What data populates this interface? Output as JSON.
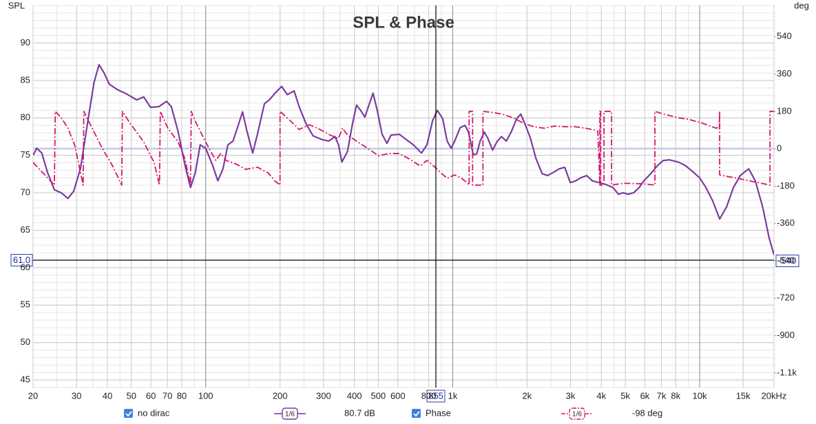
{
  "chart_data": {
    "type": "line",
    "title": "SPL & Phase",
    "y_label": "SPL",
    "y2_label": "deg",
    "xscale": "log",
    "xlim": [
      20,
      20000
    ],
    "xticks": [
      20,
      30,
      40,
      50,
      60,
      70,
      80,
      100,
      200,
      300,
      400,
      500,
      600,
      800,
      {
        "value": 1000,
        "label": "1k"
      },
      {
        "value": 2000,
        "label": "2k"
      },
      {
        "value": 3000,
        "label": "3k"
      },
      {
        "value": 4000,
        "label": "4k"
      },
      {
        "value": 5000,
        "label": "5k"
      },
      {
        "value": 6000,
        "label": "6k"
      },
      {
        "value": 7000,
        "label": "7k"
      },
      {
        "value": 8000,
        "label": "8k"
      },
      {
        "value": 10000,
        "label": "10k"
      },
      {
        "value": 15000,
        "label": "15k"
      },
      {
        "value": 20000,
        "label": "20kHz"
      }
    ],
    "ylim": [
      44,
      95
    ],
    "yticks": [
      45,
      50,
      55,
      60,
      65,
      70,
      75,
      80,
      85,
      90
    ],
    "y2lim": [
      -1150,
      690
    ],
    "y2ticks": [
      {
        "value": -1080,
        "label": "-1.1k"
      },
      -900,
      -720,
      -540,
      -360,
      -180,
      0,
      180,
      360,
      540
    ],
    "grid": true,
    "zero_line_color": "#7f9bd6",
    "cursor": {
      "x": 855,
      "y": {
        "value": 61,
        "label": "61.0"
      },
      "y2": -540
    },
    "series": [
      {
        "name": "no dirac",
        "color": "#7b3b9e",
        "smoothing": "1/6",
        "readout": "80.7 dB",
        "x": [
          20,
          20.7,
          21.7,
          22.9,
          24.4,
          26.0,
          27.7,
          29.2,
          31.1,
          33.2,
          35.3,
          37.0,
          38.7,
          40.7,
          44.0,
          47.8,
          52.6,
          56.1,
          59.8,
          64.6,
          69.4,
          72.6,
          77.3,
          82.5,
          86.8,
          90.8,
          95.0,
          100,
          106.7,
          112,
          117.5,
          123,
          129,
          136,
          141,
          147,
          155,
          162,
          173,
          181,
          191,
          203,
          214,
          228,
          239,
          255,
          272,
          296,
          315,
          334,
          345,
          356,
          375,
          393,
          408,
          424,
          441,
          458,
          476,
          495,
          518,
          542,
          563,
          608,
          649,
          693,
          748,
          787,
          829,
          867,
          911,
          950,
          986,
          1019,
          1073,
          1122,
          1159,
          1212,
          1252,
          1292,
          1343,
          1387,
          1451,
          1517,
          1577,
          1649,
          1725,
          1816,
          1888,
          1961,
          2064,
          2173,
          2303,
          2423,
          2551,
          2703,
          2844,
          2994,
          3152,
          3297,
          3491,
          3675,
          3918,
          4178,
          4456,
          4690,
          4909,
          5129,
          5404,
          5688,
          5946,
          6340,
          6761,
          7115,
          7536,
          8203,
          8742,
          9315,
          10000,
          10600,
          11300,
          12050,
          12850,
          13700,
          14600,
          15800,
          16800,
          18000,
          19100,
          20000
        ],
        "values": [
          75.0,
          75.95,
          75.3,
          72.7,
          70.4,
          70.0,
          69.25,
          70.2,
          73.2,
          79.2,
          84.7,
          87.1,
          86.05,
          84.5,
          83.75,
          83.2,
          82.4,
          82.8,
          81.4,
          81.5,
          82.2,
          81.5,
          78.2,
          73.65,
          70.7,
          72.7,
          76.4,
          75.95,
          73.65,
          71.6,
          73.2,
          76.4,
          76.9,
          79.2,
          80.8,
          78.2,
          75.3,
          77.8,
          81.9,
          82.4,
          83.3,
          84.2,
          83.1,
          83.6,
          81.5,
          79.2,
          77.6,
          77.1,
          76.9,
          77.5,
          76.4,
          74.1,
          75.5,
          79.2,
          81.7,
          81.0,
          80.1,
          81.7,
          83.3,
          81.0,
          77.8,
          76.6,
          77.7,
          77.8,
          77.1,
          76.4,
          75.3,
          76.4,
          79.6,
          81.0,
          79.9,
          76.9,
          75.95,
          76.9,
          78.7,
          79.0,
          78.1,
          75.05,
          75.2,
          76.9,
          78.1,
          77.3,
          75.7,
          76.9,
          77.5,
          76.9,
          78.1,
          79.9,
          80.5,
          79.2,
          77.3,
          74.6,
          72.55,
          72.3,
          72.7,
          73.2,
          73.4,
          71.35,
          71.6,
          72.0,
          72.3,
          71.6,
          71.35,
          71.1,
          70.7,
          69.8,
          70.0,
          69.8,
          70.0,
          70.7,
          71.6,
          72.55,
          73.65,
          74.3,
          74.4,
          74.1,
          73.65,
          72.9,
          72.0,
          70.7,
          68.9,
          66.5,
          68.1,
          70.7,
          72.3,
          73.2,
          71.6,
          68.1,
          64.0,
          61.7
        ]
      },
      {
        "name": "Phase",
        "color": "#d6156a",
        "axis": "y2",
        "dash": "dashdot",
        "smoothing": "1/6",
        "readout": "-98 deg",
        "x": [
          20,
          22.1,
          24.4,
          24.6,
          26.0,
          27.7,
          29.5,
          31.9,
          32.1,
          34.7,
          38.2,
          42.0,
          45.7,
          46.0,
          49.4,
          56.1,
          61.8,
          65.0,
          65.5,
          70.3,
          77.3,
          82.5,
          86.8,
          87.4,
          90.8,
          96.8,
          103.3,
          110,
          115,
          121,
          134,
          145,
          162,
          179,
          191,
          198,
          200,
          200,
          217,
          239,
          263,
          290,
          319,
          345,
          358,
          375,
          413,
          455,
          501,
          552,
          608,
          670,
          739,
          787,
          838,
          896,
          950,
          1019,
          1087,
          1159,
          1166,
          1166,
          1204,
          1204,
          1318,
          1326,
          1326,
          1450,
          1597,
          1758,
          1936,
          2130,
          2347,
          2583,
          2844,
          3132,
          3448,
          3796,
          3870,
          3945,
          3945,
          3970,
          3970,
          4100,
          4100,
          4400,
          4400,
          4909,
          5946,
          6590,
          6590,
          7210,
          8203,
          9020,
          10260,
          11670,
          12000,
          12050,
          12050,
          14150,
          16090,
          18310,
          19100,
          19270,
          19270,
          20000
        ],
        "values": [
          -66,
          -120,
          -175,
          180,
          150,
          99,
          17,
          -175,
          180,
          99,
          0,
          -83,
          -175,
          180,
          123,
          33,
          -66,
          -175,
          180,
          99,
          33,
          -50,
          -175,
          180,
          132,
          66,
          0,
          -56,
          -23,
          -56,
          -76,
          -99,
          -89,
          -116,
          -156,
          -170,
          -175,
          180,
          142,
          93,
          116,
          93,
          66,
          50,
          99,
          66,
          33,
          0,
          -33,
          -23,
          -23,
          -50,
          -83,
          -56,
          -83,
          -116,
          -142,
          -126,
          -142,
          -170,
          -175,
          180,
          180,
          -175,
          -175,
          -175,
          180,
          175,
          166,
          149,
          123,
          106,
          99,
          109,
          106,
          106,
          99,
          89,
          85,
          -175,
          180,
          180,
          -175,
          -175,
          180,
          180,
          -175,
          -166,
          -169,
          -175,
          180,
          166,
          149,
          142,
          123,
          99,
          105,
          180,
          -126,
          -142,
          -156,
          -169,
          -175,
          -175,
          180,
          180
        ]
      }
    ]
  }
}
